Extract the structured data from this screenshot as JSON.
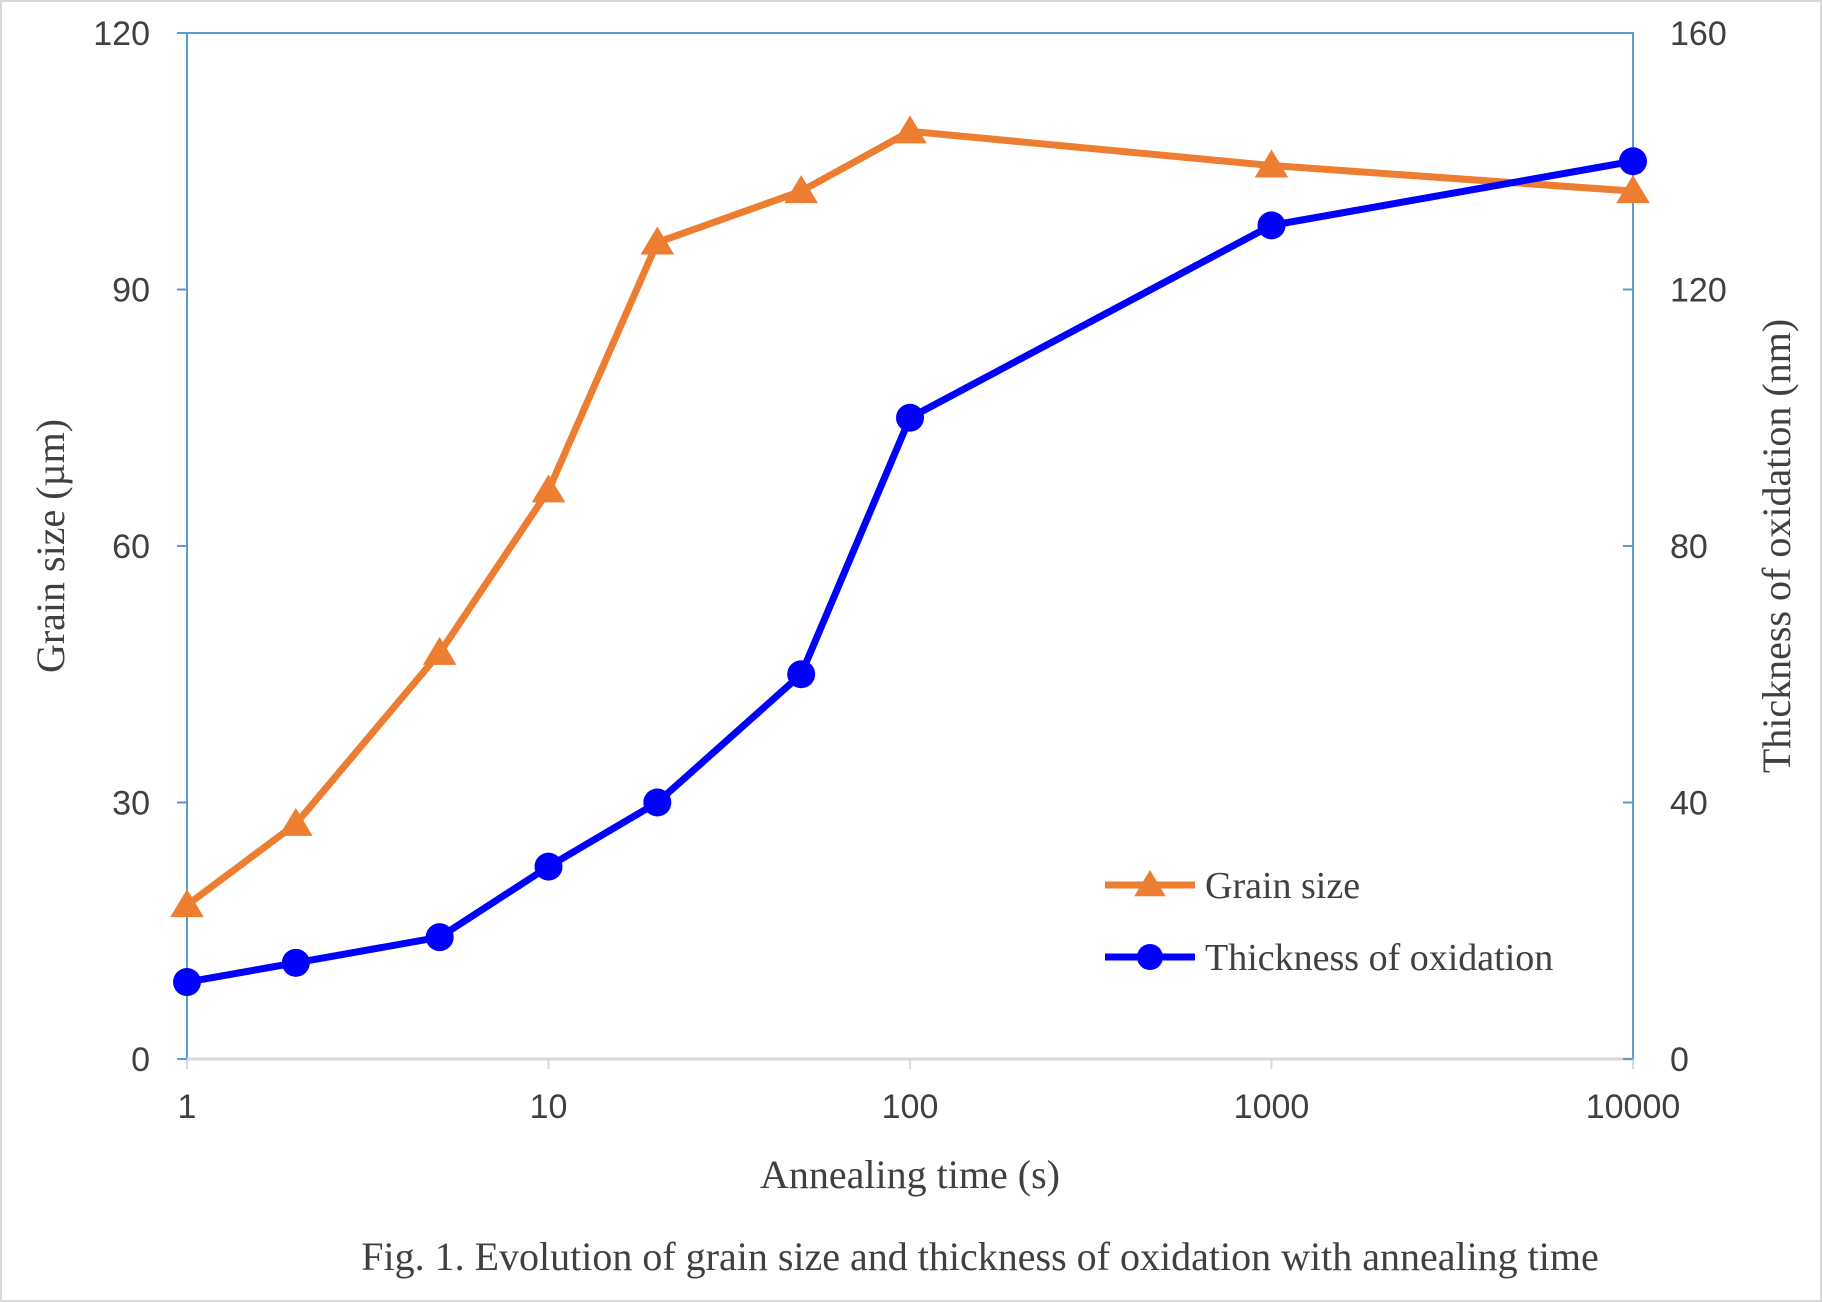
{
  "chart_data": {
    "type": "line",
    "caption": "Fig. 1. Evolution of grain size and thickness of oxidation with annealing time",
    "xlabel": "Annealing time (s)",
    "ylabel_left": "Grain size (µm)",
    "ylabel_right": "Thickness of oxidation (nm)",
    "x_scale": "log",
    "xlim": [
      1,
      10000
    ],
    "ylim_left": [
      0,
      120
    ],
    "ylim_right": [
      0,
      160
    ],
    "x_ticks": [
      "1",
      "10",
      "100",
      "1000",
      "10000"
    ],
    "y_ticks_left": [
      "0",
      "30",
      "60",
      "90",
      "120"
    ],
    "y_ticks_right": [
      "0",
      "40",
      "80",
      "120",
      "160"
    ],
    "legend_position": "bottom-right inside plot",
    "grid": false,
    "series": [
      {
        "name": "Grain size",
        "axis": "left",
        "marker": "triangle",
        "color": "#ED7D31",
        "x": [
          1,
          2,
          5,
          10,
          20,
          50,
          100,
          1000,
          10000
        ],
        "y": [
          18,
          27.5,
          47.5,
          66.5,
          95.5,
          101.5,
          108.5,
          104.5,
          101.5
        ]
      },
      {
        "name": "Thickness of oxidation",
        "axis": "right",
        "marker": "circle",
        "color": "#0000FF",
        "x": [
          1,
          2,
          5,
          10,
          20,
          50,
          100,
          1000,
          10000
        ],
        "y": [
          12,
          15,
          19,
          30,
          40,
          60,
          100,
          130,
          140
        ]
      }
    ]
  }
}
